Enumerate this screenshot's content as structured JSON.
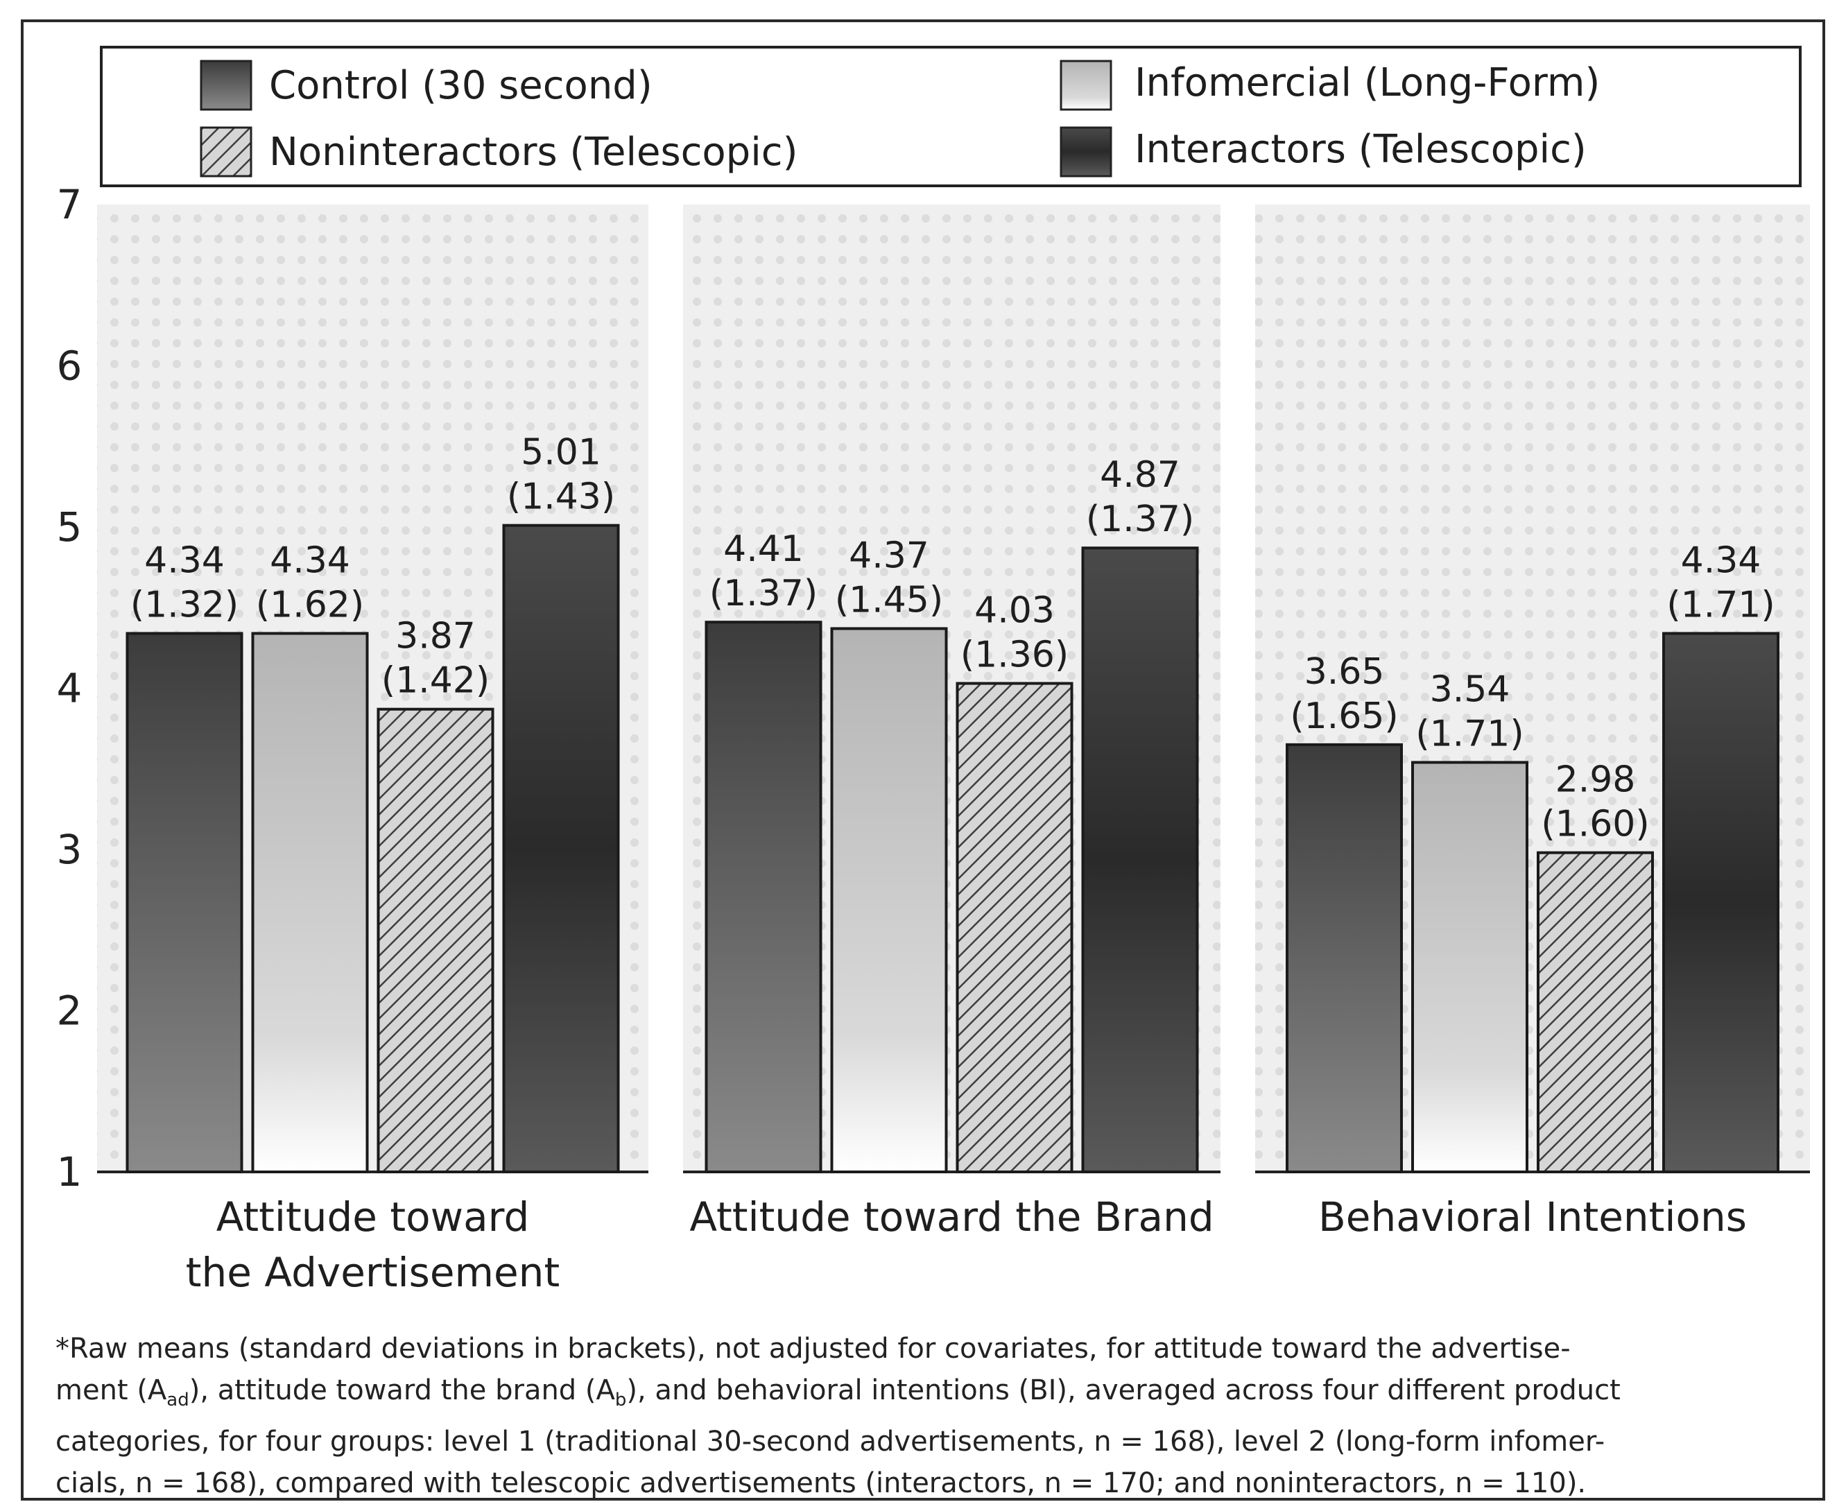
{
  "chart_data": {
    "type": "bar",
    "title": "",
    "xlabel": "",
    "ylabel": "",
    "ylim": [
      1,
      7
    ],
    "yticks": [
      "1",
      "2",
      "3",
      "4",
      "5",
      "6",
      "7"
    ],
    "grid": false,
    "legend_placement": "top",
    "categories": [
      [
        "Attitude toward",
        "the Advertisement"
      ],
      [
        "Attitude toward the Brand"
      ],
      [
        "Behavioral Intentions"
      ]
    ],
    "series": [
      {
        "name": "Control (30 second)",
        "values": [
          4.34,
          4.41,
          3.65
        ],
        "sd": [
          "(1.32)",
          "(1.37)",
          "(1.65)"
        ],
        "labels": [
          "4.34",
          "4.41",
          "3.65"
        ],
        "fill": "#5a5a5a"
      },
      {
        "name": "Infomercial (Long-Form)",
        "values": [
          4.34,
          4.37,
          3.54
        ],
        "sd": [
          "(1.62)",
          "(1.45)",
          "(1.71)"
        ],
        "labels": [
          "4.34",
          "4.37",
          "3.54"
        ],
        "fill": "#c8c8c8"
      },
      {
        "name": "Noninteractors (Telescopic)",
        "values": [
          3.87,
          4.03,
          2.98
        ],
        "sd": [
          "(1.42)",
          "(1.36)",
          "(1.60)"
        ],
        "labels": [
          "3.87",
          "4.03",
          "2.98"
        ],
        "fill": "hatch"
      },
      {
        "name": "Interactors (Telescopic)",
        "values": [
          5.01,
          4.87,
          4.34
        ],
        "sd": [
          "(1.43)",
          "(1.37)",
          "(1.71)"
        ],
        "labels": [
          "5.01",
          "4.87",
          "4.34"
        ],
        "fill": "#3a3a3a"
      }
    ]
  },
  "caption": {
    "line1": "*Raw means (standard deviations in brackets), not adjusted for covariates, for attitude toward the advertise-",
    "line2_a": "ment (A",
    "line2_sub1": "ad",
    "line2_b": "), attitude toward the brand (A",
    "line2_sub2": "b",
    "line2_c": "), and behavioral intentions (BI), averaged across four different product",
    "line3": "categories, for four groups: level 1 (traditional 30-second advertisements, n = 168), level 2 (long-form infomer-",
    "line4": "cials, n = 168), compared with telescopic advertisements (interactors, n = 170; and noninteractors, n = 110)."
  },
  "colors": {
    "axis": "#2a2a2a",
    "text": "#222222",
    "control": "#5a5a5a",
    "infomercial": "#c8c8c8",
    "noninteractor_hatch": "#444444",
    "interactor": "#3a3a3a"
  }
}
